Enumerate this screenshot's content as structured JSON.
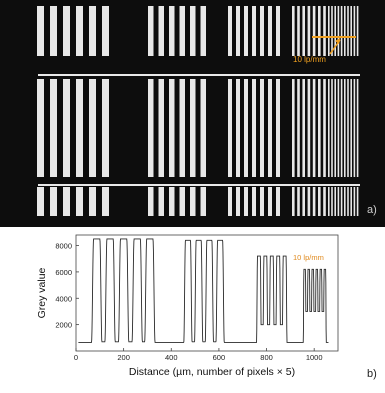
{
  "panel_a": {
    "label": "a)",
    "annotation": "10 lp/mm",
    "colors": {
      "background": "#0d0d0d",
      "bars": "#e8e8e8",
      "annotation": "#f0a020",
      "label": "#cfcfcf"
    }
  },
  "panel_b": {
    "label": "b)"
  },
  "chart_data": {
    "type": "line",
    "xlabel": "Distance (µm, number of pixels × 5)",
    "ylabel": "Grey value",
    "annotation": "10 lp/mm",
    "annotation_color": "#e08a1e",
    "xlim": [
      0,
      1100
    ],
    "ylim": [
      0,
      8800
    ],
    "x_ticks": [
      0,
      200,
      400,
      600,
      800,
      1000
    ],
    "y_ticks": [
      2000,
      4000,
      6000,
      8000
    ],
    "grid": false,
    "baseline": 650,
    "line_color": "#2a2a2a",
    "groups": [
      {
        "peaks": [
          87,
          143,
          200,
          257,
          310
        ],
        "peak_value": 8500,
        "valley_value": 700,
        "width": 35
      },
      {
        "peaks": [
          470,
          515,
          560,
          605
        ],
        "peak_value": 8400,
        "valley_value": 700,
        "width": 28
      },
      {
        "peaks": [
          768,
          795,
          822,
          849,
          876
        ],
        "peak_value": 7200,
        "valley_value": 2000,
        "width": 16
      },
      {
        "peaks": [
          960,
          977,
          994,
          1011,
          1028,
          1045
        ],
        "peak_value": 6200,
        "valley_value": 3000,
        "width": 9
      }
    ]
  }
}
